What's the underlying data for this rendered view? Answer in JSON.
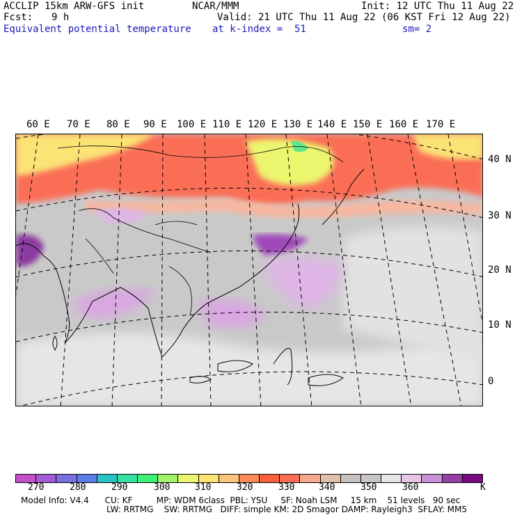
{
  "header": {
    "model": "ACCLIP 15km ARW-GFS init",
    "center": "NCAR/MMM",
    "init": "Init: 12 UTC Thu 11 Aug 22",
    "fcst_label": "Fcst:",
    "fcst_value": "9 h",
    "valid": "Valid: 21 UTC Thu 11 Aug 22 (06 KST Fri 12 Aug 22)",
    "field": "Equivalent potential temperature",
    "level": "at k-index =  51",
    "smoothing": "sm= 2"
  },
  "map": {
    "lon_labels": [
      "60 E",
      "70 E",
      "80 E",
      "90 E",
      "100 E",
      "110 E",
      "120 E",
      "130 E",
      "140 E",
      "150 E",
      "160 E",
      "170 E"
    ],
    "lat_labels": [
      "40 N",
      "30 N",
      "20 N",
      "10 N",
      "0"
    ],
    "colors": {
      "land_border": "#000000",
      "grid": "#000000"
    }
  },
  "colorbar": {
    "colors": [
      "#c450c8",
      "#a55ad8",
      "#7b6ee0",
      "#5a7ee6",
      "#28c3c3",
      "#36e0a0",
      "#3ef07a",
      "#a2f26a",
      "#ecf56e",
      "#fbe376",
      "#fac47a",
      "#fb8c5a",
      "#f9603c",
      "#fb6e56",
      "#f7a890",
      "#dfbfa8",
      "#c8c0bc",
      "#c6c6c6",
      "#e6e6e6",
      "#e7c5e6",
      "#c890d7",
      "#9440a8",
      "#7a0a80"
    ],
    "ticks": [
      "270",
      "280",
      "290",
      "300",
      "310",
      "320",
      "330",
      "340",
      "350",
      "360"
    ],
    "unit": "K"
  },
  "model_info": {
    "line1": "Model Info: V4.4      CU: KF         MP: WDM 6class  PBL: YSU     SF: Noah LSM     15 km    51 levels   90 sec",
    "line2": "LW: RRTMG    SW: RRTMG   DIFF: simple KM: 2D Smagor DAMP: Rayleigh3  SFLAY: MM5"
  }
}
